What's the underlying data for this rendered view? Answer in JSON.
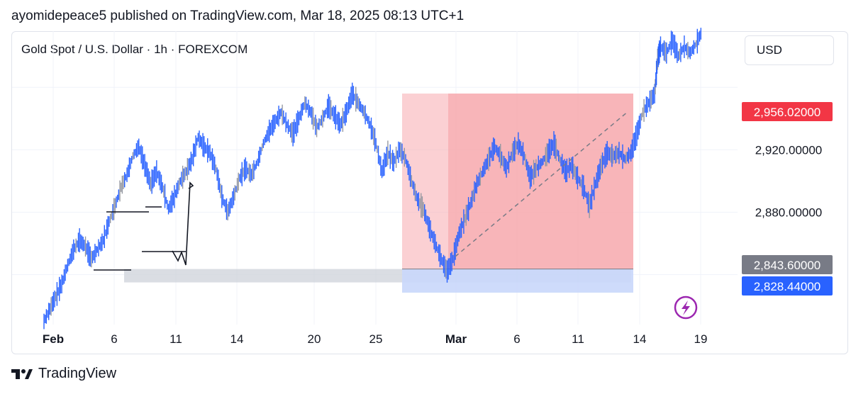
{
  "header": {
    "published": "ayomidepeace5 published on TradingView.com, Mar 18, 2025 08:13 UTC+1"
  },
  "chart_header": {
    "symbol": "Gold Spot / U.S. Dollar · 1h · FOREXCOM",
    "currency": "USD"
  },
  "price_labels": [
    {
      "value": "2,956.02000",
      "color": "#f23645"
    },
    {
      "value": "2,843.60000",
      "color": "#787b86"
    },
    {
      "value": "2,828.44000",
      "color": "#2962ff"
    }
  ],
  "footer": {
    "brand": "TradingView"
  },
  "colors": {
    "candle_up": "#2962ff",
    "candle_neutral": "#9598a1",
    "sell_zone": "#f7a9ae",
    "buy_zone": "#c9d7fb",
    "demand_zone": "#d1d4dc",
    "grid": "#f0f3fa"
  },
  "chart_data": {
    "type": "line",
    "y_axis": {
      "ticks": [
        2880,
        2920
      ],
      "tick_labels": [
        "2,880.00000",
        "2,920.00000"
      ],
      "range": [
        2808,
        2996
      ]
    },
    "x_axis": {
      "tick_labels": [
        "Feb",
        "6",
        "11",
        "14",
        "20",
        "25",
        "Mar",
        "6",
        "11",
        "14",
        "19"
      ]
    },
    "series": [
      {
        "path": [
          [
            0,
            2810
          ],
          [
            2,
            2818
          ],
          [
            4,
            2826
          ],
          [
            6,
            2834
          ],
          [
            8,
            2846
          ],
          [
            10,
            2856
          ],
          [
            12,
            2862
          ],
          [
            14,
            2858
          ],
          [
            16,
            2850
          ],
          [
            18,
            2856
          ],
          [
            20,
            2862
          ],
          [
            22,
            2874
          ],
          [
            24,
            2884
          ],
          [
            26,
            2896
          ],
          [
            28,
            2904
          ],
          [
            30,
            2916
          ],
          [
            32,
            2922
          ],
          [
            34,
            2910
          ],
          [
            36,
            2898
          ],
          [
            38,
            2906
          ],
          [
            40,
            2896
          ],
          [
            42,
            2882
          ],
          [
            44,
            2890
          ],
          [
            46,
            2900
          ],
          [
            48,
            2906
          ],
          [
            50,
            2914
          ],
          [
            52,
            2928
          ],
          [
            54,
            2922
          ],
          [
            56,
            2918
          ],
          [
            58,
            2908
          ],
          [
            60,
            2890
          ],
          [
            62,
            2880
          ],
          [
            64,
            2890
          ],
          [
            66,
            2902
          ],
          [
            68,
            2908
          ],
          [
            70,
            2904
          ],
          [
            72,
            2912
          ],
          [
            74,
            2924
          ],
          [
            76,
            2932
          ],
          [
            78,
            2938
          ],
          [
            80,
            2944
          ],
          [
            82,
            2936
          ],
          [
            84,
            2930
          ],
          [
            86,
            2940
          ],
          [
            88,
            2950
          ],
          [
            90,
            2944
          ],
          [
            92,
            2934
          ],
          [
            94,
            2940
          ],
          [
            96,
            2948
          ],
          [
            98,
            2942
          ],
          [
            100,
            2936
          ],
          [
            102,
            2944
          ],
          [
            104,
            2956
          ],
          [
            106,
            2950
          ],
          [
            108,
            2944
          ],
          [
            110,
            2936
          ],
          [
            112,
            2924
          ],
          [
            114,
            2906
          ],
          [
            116,
            2918
          ],
          [
            118,
            2912
          ],
          [
            120,
            2920
          ],
          [
            122,
            2914
          ],
          [
            124,
            2900
          ],
          [
            126,
            2888
          ],
          [
            128,
            2882
          ],
          [
            130,
            2870
          ],
          [
            132,
            2860
          ],
          [
            134,
            2850
          ],
          [
            136,
            2842
          ],
          [
            138,
            2850
          ],
          [
            140,
            2866
          ],
          [
            142,
            2876
          ],
          [
            144,
            2886
          ],
          [
            146,
            2898
          ],
          [
            148,
            2906
          ],
          [
            150,
            2914
          ],
          [
            152,
            2922
          ],
          [
            154,
            2916
          ],
          [
            156,
            2908
          ],
          [
            158,
            2918
          ],
          [
            160,
            2924
          ],
          [
            162,
            2916
          ],
          [
            164,
            2902
          ],
          [
            166,
            2908
          ],
          [
            168,
            2912
          ],
          [
            170,
            2918
          ],
          [
            172,
            2924
          ],
          [
            174,
            2914
          ],
          [
            176,
            2906
          ],
          [
            178,
            2910
          ],
          [
            180,
            2902
          ],
          [
            182,
            2896
          ],
          [
            184,
            2884
          ],
          [
            186,
            2898
          ],
          [
            188,
            2910
          ],
          [
            190,
            2918
          ],
          [
            192,
            2916
          ],
          [
            194,
            2918
          ],
          [
            196,
            2914
          ],
          [
            198,
            2918
          ],
          [
            200,
            2930
          ],
          [
            202,
            2944
          ],
          [
            204,
            2950
          ],
          [
            206,
            2956
          ],
          [
            207,
            2978
          ],
          [
            208,
            2986
          ],
          [
            210,
            2982
          ],
          [
            212,
            2990
          ],
          [
            214,
            2980
          ],
          [
            216,
            2986
          ],
          [
            218,
            2982
          ],
          [
            220,
            2988
          ],
          [
            222,
            2996
          ]
        ]
      }
    ],
    "annotations": [
      "2,956.02000",
      "2,843.60000",
      "2,828.44000"
    ]
  }
}
